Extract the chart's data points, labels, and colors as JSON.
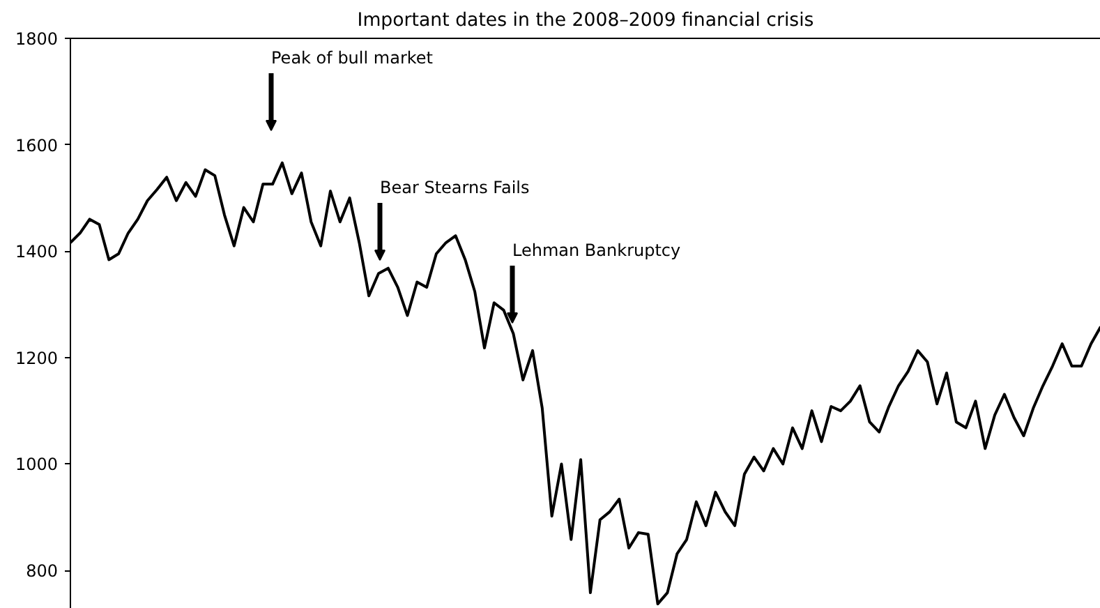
{
  "chart_data": {
    "type": "line",
    "title": "Important dates in the 2008–2009 financial crisis",
    "categories": [
      null,
      null,
      null,
      null,
      null,
      null,
      null,
      null,
      null,
      null,
      null,
      null,
      null,
      null,
      null,
      null,
      null,
      null,
      null,
      null,
      null,
      null,
      null,
      null,
      null,
      null,
      null,
      null,
      null,
      null,
      null,
      null,
      null,
      null,
      null,
      null,
      null,
      null,
      null,
      null,
      null,
      null,
      null,
      null,
      null,
      null,
      null,
      null,
      null,
      null,
      null,
      null,
      null,
      null,
      null,
      null,
      null,
      null,
      null,
      null,
      null,
      null,
      null,
      null,
      null,
      null,
      null,
      null,
      null,
      null,
      null,
      null,
      null,
      null,
      null,
      null,
      null,
      null,
      null,
      null,
      null,
      null,
      null,
      null,
      null,
      null,
      null,
      null,
      null,
      null,
      null,
      null,
      null,
      null,
      null,
      null,
      null,
      null,
      null,
      null,
      null,
      null,
      null,
      null,
      null,
      null,
      null,
      null
    ],
    "series": [
      {
        "color": "#000000",
        "values": [
          1416,
          1434,
          1460,
          1450,
          1384,
          1395,
          1434,
          1460,
          1495,
          1516,
          1539,
          1495,
          1529,
          1503,
          1553,
          1542,
          1468,
          1410,
          1482,
          1455,
          1526,
          1526,
          1566,
          1508,
          1547,
          1455,
          1410,
          1513,
          1455,
          1500,
          1416,
          1316,
          1358,
          1368,
          1332,
          1279,
          1342,
          1332,
          1395,
          1416,
          1429,
          1384,
          1324,
          1218,
          1303,
          1289,
          1245,
          1158,
          1213,
          1105,
          902,
          1000,
          858,
          1008,
          758,
          895,
          910,
          934,
          842,
          871,
          868,
          737,
          758,
          831,
          858,
          929,
          884,
          947,
          910,
          884,
          981,
          1013,
          987,
          1029,
          1000,
          1068,
          1029,
          1100,
          1042,
          1108,
          1100,
          1118,
          1147,
          1079,
          1060,
          1108,
          1147,
          1174,
          1213,
          1192,
          1113,
          1171,
          1079,
          1068,
          1118,
          1029,
          1092,
          1131,
          1087,
          1053,
          1105,
          1147,
          1184,
          1226,
          1184,
          1184,
          1226,
          1258
        ]
      }
    ],
    "annotations": [
      "Peak of bull market",
      "Bear Stearns Fails",
      "Lehman Bankruptcy"
    ],
    "ylim": [
      728,
      1800
    ],
    "yticks": [
      800,
      1000,
      1200,
      1400,
      1600,
      1800
    ],
    "tick_labels": "y",
    "grid": false,
    "line_style": "solid",
    "marker": "none"
  }
}
